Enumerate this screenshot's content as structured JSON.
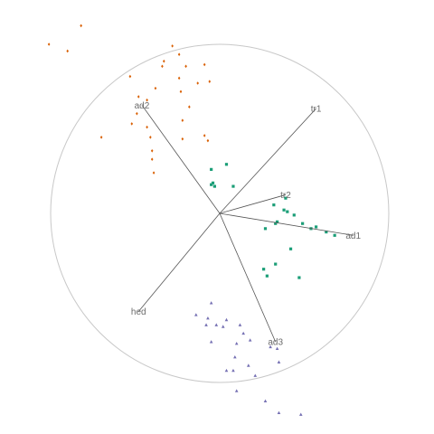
{
  "chart_data": {
    "type": "scatter",
    "title": "",
    "xlabel": "",
    "ylabel": "",
    "xlim": [
      -1.3,
      1.3
    ],
    "ylim": [
      -1.3,
      1.3
    ],
    "grid": false,
    "legend": "none",
    "unit_circle": true,
    "colors": {
      "circle": "#c8c8c8",
      "axis": "#555555",
      "axis_label": "#6b6b6b",
      "group1": "#d95f02",
      "group2": "#1b9e77",
      "group3": "#7570b3"
    },
    "axes": [
      {
        "label": "ad2",
        "x": -0.46,
        "y": 0.64
      },
      {
        "label": "tr1",
        "x": 0.57,
        "y": 0.62
      },
      {
        "label": "tr2",
        "x": 0.39,
        "y": 0.11
      },
      {
        "label": "ad1",
        "x": 0.79,
        "y": -0.13
      },
      {
        "label": "ad3",
        "x": 0.33,
        "y": -0.76
      },
      {
        "label": "hed",
        "x": -0.48,
        "y": -0.58
      }
    ],
    "series": [
      {
        "marker": "diamond",
        "color": "#d95f02",
        "points": [
          [
            -0.82,
            1.11
          ],
          [
            -1.01,
            1.0
          ],
          [
            -0.9,
            0.96
          ],
          [
            -0.28,
            0.99
          ],
          [
            -0.24,
            0.94
          ],
          [
            -0.33,
            0.9
          ],
          [
            -0.34,
            0.87
          ],
          [
            -0.2,
            0.87
          ],
          [
            -0.09,
            0.88
          ],
          [
            -0.53,
            0.81
          ],
          [
            -0.38,
            0.74
          ],
          [
            -0.24,
            0.8
          ],
          [
            -0.13,
            0.77
          ],
          [
            -0.06,
            0.78
          ],
          [
            -0.48,
            0.69
          ],
          [
            -0.23,
            0.72
          ],
          [
            -0.43,
            0.67
          ],
          [
            -0.18,
            0.63
          ],
          [
            -0.49,
            0.59
          ],
          [
            -0.52,
            0.53
          ],
          [
            -0.43,
            0.51
          ],
          [
            -0.22,
            0.55
          ],
          [
            -0.7,
            0.45
          ],
          [
            -0.41,
            0.45
          ],
          [
            -0.22,
            0.44
          ],
          [
            -0.09,
            0.46
          ],
          [
            -0.07,
            0.43
          ],
          [
            -0.4,
            0.37
          ],
          [
            -0.4,
            0.32
          ],
          [
            -0.39,
            0.24
          ]
        ]
      },
      {
        "marker": "square",
        "color": "#1b9e77",
        "points": [
          [
            0.04,
            0.29
          ],
          [
            -0.05,
            0.26
          ],
          [
            0.08,
            0.16
          ],
          [
            -0.03,
            0.16
          ],
          [
            -0.04,
            0.18
          ],
          [
            -0.05,
            0.17
          ],
          [
            0.39,
            0.09
          ],
          [
            0.32,
            0.05
          ],
          [
            0.38,
            0.02
          ],
          [
            0.4,
            0.01
          ],
          [
            0.44,
            -0.01
          ],
          [
            0.49,
            -0.06
          ],
          [
            0.33,
            -0.06
          ],
          [
            0.34,
            -0.05
          ],
          [
            0.57,
            -0.08
          ],
          [
            0.54,
            -0.09
          ],
          [
            0.63,
            -0.11
          ],
          [
            0.68,
            -0.13
          ],
          [
            0.27,
            -0.09
          ],
          [
            0.42,
            -0.21
          ],
          [
            0.33,
            -0.3
          ],
          [
            0.26,
            -0.33
          ],
          [
            0.28,
            -0.37
          ],
          [
            0.47,
            -0.38
          ]
        ]
      },
      {
        "marker": "triangle",
        "color": "#7570b3",
        "points": [
          [
            -0.05,
            -0.53
          ],
          [
            -0.14,
            -0.6
          ],
          [
            -0.07,
            -0.62
          ],
          [
            0.04,
            -0.63
          ],
          [
            -0.08,
            -0.66
          ],
          [
            -0.02,
            -0.66
          ],
          [
            0.12,
            -0.66
          ],
          [
            0.02,
            -0.67
          ],
          [
            0.14,
            -0.71
          ],
          [
            0.18,
            -0.75
          ],
          [
            -0.05,
            -0.76
          ],
          [
            0.1,
            -0.77
          ],
          [
            0.3,
            -0.79
          ],
          [
            0.34,
            -0.8
          ],
          [
            0.09,
            -0.85
          ],
          [
            0.35,
            -0.88
          ],
          [
            0.17,
            -0.9
          ],
          [
            0.04,
            -0.93
          ],
          [
            0.08,
            -0.93
          ],
          [
            0.21,
            -0.96
          ],
          [
            0.1,
            -1.05
          ],
          [
            0.27,
            -1.11
          ],
          [
            0.35,
            -1.18
          ],
          [
            0.48,
            -1.19
          ]
        ]
      }
    ]
  }
}
